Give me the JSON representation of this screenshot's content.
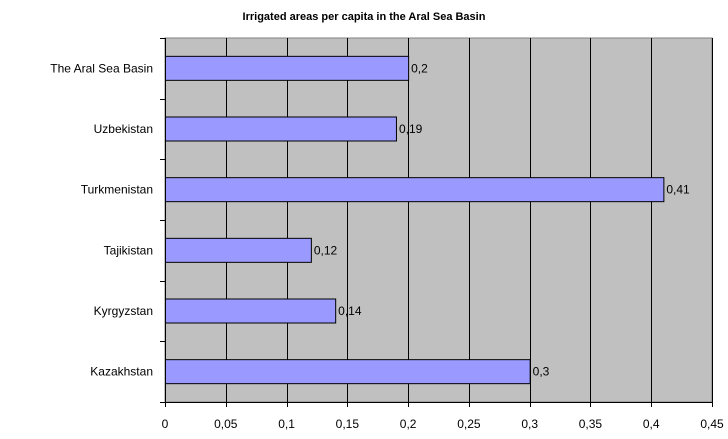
{
  "chart_data": {
    "type": "bar",
    "orientation": "horizontal",
    "title": "Irrigated areas per capita in the Aral Sea Basin",
    "categories": [
      "The Aral Sea Basin",
      "Uzbekistan",
      "Turkmenistan",
      "Tajikistan",
      "Kyrgyzstan",
      "Kazakhstan"
    ],
    "values": [
      0.2,
      0.19,
      0.41,
      0.12,
      0.14,
      0.3
    ],
    "value_labels": [
      "0,2",
      "0,19",
      "0,41",
      "0,12",
      "0,14",
      "0,3"
    ],
    "xlim": [
      0,
      0.45
    ],
    "x_ticks": [
      0,
      0.05,
      0.1,
      0.15,
      0.2,
      0.25,
      0.3,
      0.35,
      0.4,
      0.45
    ],
    "x_tick_labels": [
      "0",
      "0,05",
      "0,1",
      "0,15",
      "0,2",
      "0,25",
      "0,3",
      "0,35",
      "0,4",
      "0,45"
    ],
    "grid": true,
    "legend": "none",
    "colors": {
      "bar_fill": "#9999FF",
      "bar_stroke": "#000000",
      "plot_background": "#C0C0C0",
      "gridline": "#000000"
    }
  }
}
